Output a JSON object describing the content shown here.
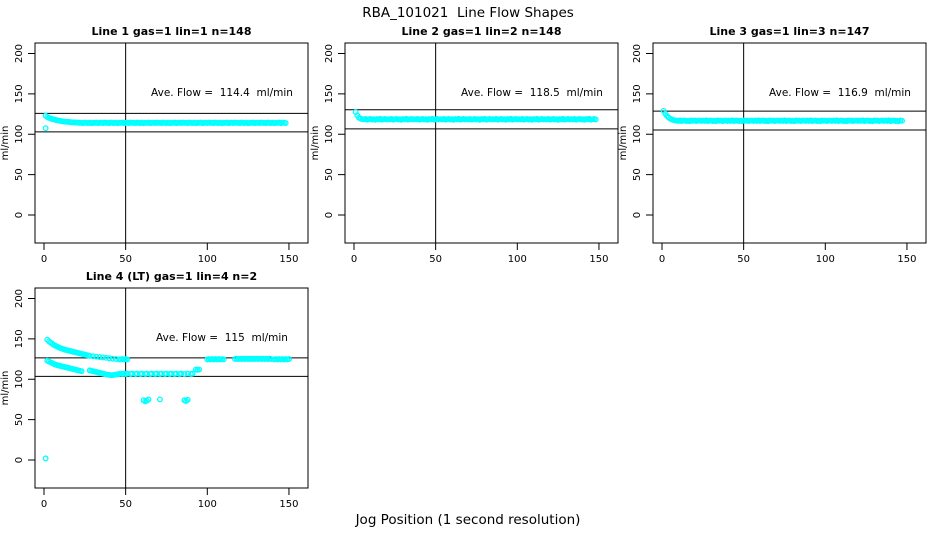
{
  "page": {
    "title": "RBA_101021  Line Flow Shapes",
    "x_axis_label": "Jog Position (1 second resolution)",
    "background": "#ffffff"
  },
  "colors": {
    "points": "#00FFFF",
    "axis": "#000000",
    "text": "#000000"
  },
  "chart_data": [
    {
      "type": "scatter",
      "title": "Line 1 gas=1 lin=1 n=148",
      "annotation": "Ave. Flow =  114.4  ml/min",
      "ave_flow": 114.4,
      "n": 148,
      "ylabel": "ml/min",
      "x_ticks": [
        0,
        50,
        100,
        150
      ],
      "y_ticks": [
        0,
        50,
        100,
        150,
        200
      ],
      "xlim": [
        -5,
        162
      ],
      "ylim": [
        -40,
        213
      ],
      "grid": false,
      "vline_x": 50,
      "ref_lines": [
        125.8,
        103.0
      ],
      "marker": "open-circle",
      "series": {
        "x_start": 1,
        "x_step": 1,
        "y": [
          123.0,
          121.5,
          120.4,
          119.6,
          118.9,
          118.3,
          117.8,
          117.3,
          116.9,
          116.5,
          116.2,
          115.9,
          115.6,
          115.4,
          115.2,
          115.0,
          114.8,
          114.7,
          114.6,
          114.5,
          114.4,
          114.0,
          114.2,
          113.8,
          114.5,
          114.1,
          113.9,
          114.3,
          113.7,
          114.2,
          114.0,
          114.4,
          113.8,
          114.1,
          114.3,
          113.9,
          114.4,
          114.0,
          114.2,
          113.8,
          114.5,
          114.1,
          113.9,
          114.3,
          113.7,
          114.2,
          114.0,
          114.4,
          113.8,
          114.1,
          114.3,
          113.9,
          114.4,
          114.0,
          114.2,
          113.8,
          114.5,
          114.1,
          113.9,
          114.3,
          113.7,
          114.2,
          114.0,
          114.4,
          113.8,
          114.1,
          114.3,
          113.9,
          114.4,
          114.0,
          114.2,
          113.8,
          114.5,
          114.1,
          113.9,
          114.3,
          113.7,
          114.2,
          114.0,
          114.4,
          113.8,
          114.1,
          114.3,
          113.9,
          114.4,
          114.0,
          114.2,
          113.8,
          114.5,
          114.1,
          113.9,
          114.3,
          113.7,
          114.2,
          114.0,
          114.4,
          113.8,
          114.1,
          114.3,
          113.9,
          114.4,
          114.0,
          114.2,
          113.8,
          114.5,
          114.1,
          113.9,
          114.3,
          113.7,
          114.2,
          114.0,
          114.4,
          113.8,
          114.1,
          114.3,
          113.9,
          114.4,
          114.0,
          114.2,
          113.8,
          114.5,
          114.1,
          113.9,
          114.3,
          113.7,
          114.2,
          114.0,
          114.4,
          113.8,
          114.1,
          114.3,
          113.9,
          114.4,
          114.0,
          114.2,
          113.8,
          114.5,
          114.1,
          113.9,
          114.3,
          113.7,
          114.2,
          114.0,
          114.4,
          113.8,
          114.1,
          114.3,
          113.9
        ]
      },
      "extra_points": [
        [
          1,
          107.5
        ]
      ]
    },
    {
      "type": "scatter",
      "title": "Line 2 gas=1 lin=2 n=148",
      "annotation": "Ave. Flow =  118.5  ml/min",
      "ave_flow": 118.5,
      "n": 148,
      "ylabel": "ml/min",
      "x_ticks": [
        0,
        50,
        100,
        150
      ],
      "y_ticks": [
        0,
        50,
        100,
        150,
        200
      ],
      "xlim": [
        -5,
        162
      ],
      "ylim": [
        -40,
        213
      ],
      "grid": false,
      "vline_x": 50,
      "ref_lines": [
        130.4,
        106.7
      ],
      "marker": "open-circle",
      "series": {
        "x_start": 1,
        "x_step": 1,
        "y": [
          127.5,
          123.5,
          120.5,
          119.5,
          118.7,
          118.3,
          118.9,
          118.1,
          118.5,
          119.0,
          118.2,
          118.6,
          117.9,
          118.8,
          118.4,
          119.1,
          118.0,
          118.5,
          118.9,
          118.3,
          118.7,
          118.3,
          118.9,
          118.1,
          118.5,
          119.0,
          118.2,
          118.6,
          117.9,
          118.8,
          118.4,
          119.1,
          118.0,
          118.5,
          118.9,
          118.3,
          118.7,
          118.3,
          118.9,
          118.1,
          118.5,
          119.0,
          118.2,
          118.6,
          117.9,
          118.8,
          118.4,
          119.1,
          118.0,
          118.5,
          118.9,
          118.3,
          118.7,
          118.3,
          118.9,
          118.1,
          118.5,
          119.0,
          118.2,
          118.6,
          117.9,
          118.8,
          118.4,
          119.1,
          118.0,
          118.5,
          118.9,
          118.3,
          118.7,
          118.3,
          118.9,
          118.1,
          118.5,
          119.0,
          118.2,
          118.6,
          117.9,
          118.8,
          118.4,
          119.1,
          118.0,
          118.5,
          118.9,
          118.3,
          118.7,
          118.3,
          118.9,
          118.1,
          118.5,
          119.0,
          118.2,
          118.6,
          117.9,
          118.8,
          118.4,
          119.1,
          118.0,
          118.5,
          118.9,
          118.3,
          118.7,
          118.3,
          118.9,
          118.1,
          118.5,
          119.0,
          118.2,
          118.6,
          117.9,
          118.8,
          118.4,
          119.1,
          118.0,
          118.5,
          118.9,
          118.3,
          118.7,
          118.3,
          118.9,
          118.1,
          118.5,
          119.0,
          118.2,
          118.6,
          117.9,
          118.8,
          118.4,
          119.1,
          118.0,
          118.5,
          118.9,
          118.3,
          118.7,
          118.3,
          118.9,
          118.1,
          118.5,
          119.0,
          118.2,
          118.6,
          117.9,
          118.8,
          118.4,
          119.1,
          118.0,
          118.5,
          118.9,
          118.3
        ]
      },
      "extra_points": []
    },
    {
      "type": "scatter",
      "title": "Line 3 gas=1 lin=3 n=147",
      "annotation": "Ave. Flow =  116.9  ml/min",
      "ave_flow": 116.9,
      "n": 147,
      "ylabel": "ml/min",
      "x_ticks": [
        0,
        50,
        100,
        150
      ],
      "y_ticks": [
        0,
        50,
        100,
        150,
        200
      ],
      "xlim": [
        -5,
        162
      ],
      "ylim": [
        -40,
        213
      ],
      "grid": false,
      "vline_x": 50,
      "ref_lines": [
        128.6,
        105.2
      ],
      "marker": "open-circle",
      "series": {
        "x_start": 1,
        "x_step": 1,
        "y": [
          129.0,
          125.5,
          122.8,
          120.8,
          119.3,
          118.3,
          117.6,
          117.1,
          116.9,
          116.5,
          117.2,
          116.3,
          116.8,
          117.0,
          116.4,
          116.7,
          116.2,
          117.1,
          116.6,
          116.9,
          116.3,
          116.8,
          117.0,
          116.5,
          116.9,
          116.5,
          117.2,
          116.3,
          116.8,
          117.0,
          116.4,
          116.7,
          116.2,
          117.1,
          116.6,
          116.9,
          116.3,
          116.8,
          117.0,
          116.5,
          116.9,
          116.5,
          117.2,
          116.3,
          116.8,
          117.0,
          116.4,
          116.7,
          116.2,
          117.1,
          116.6,
          116.9,
          116.3,
          116.8,
          117.0,
          116.5,
          116.9,
          116.5,
          117.2,
          116.3,
          116.8,
          117.0,
          116.4,
          116.7,
          116.2,
          117.1,
          116.6,
          116.9,
          116.3,
          116.8,
          117.0,
          116.5,
          116.9,
          116.5,
          117.2,
          116.3,
          116.8,
          117.0,
          116.4,
          116.7,
          116.2,
          117.1,
          116.6,
          116.9,
          116.3,
          116.8,
          117.0,
          116.5,
          116.9,
          116.5,
          117.2,
          116.3,
          116.8,
          117.0,
          116.4,
          116.7,
          116.2,
          117.1,
          116.6,
          116.9,
          116.3,
          116.8,
          117.0,
          116.5,
          116.9,
          116.5,
          117.2,
          116.3,
          116.8,
          117.0,
          116.4,
          116.7,
          116.2,
          117.1,
          116.6,
          116.9,
          116.3,
          116.8,
          117.0,
          116.5,
          116.9,
          116.5,
          117.2,
          116.3,
          116.8,
          117.0,
          116.4,
          116.7,
          116.2,
          117.1,
          116.6,
          116.9,
          116.3,
          116.8,
          117.0,
          116.5,
          116.9,
          116.5,
          117.2,
          116.3,
          116.8,
          117.0,
          116.4,
          116.7,
          116.2,
          117.1,
          116.6
        ]
      },
      "extra_points": []
    },
    {
      "type": "scatter",
      "title": "Line 4 (LT) gas=1 lin=4 n=2",
      "annotation": "Ave. Flow =  115  ml/min",
      "ave_flow": 115,
      "n": 2,
      "ylabel": "ml/min",
      "x_ticks": [
        0,
        50,
        100,
        150
      ],
      "y_ticks": [
        0,
        50,
        100,
        150,
        200
      ],
      "xlim": [
        -5,
        162
      ],
      "ylim": [
        -40,
        213
      ],
      "grid": false,
      "vline_x": 50,
      "ref_lines": [
        126.5,
        103.5
      ],
      "marker": "open-circle",
      "points": [
        [
          1,
          2
        ],
        [
          2,
          149
        ],
        [
          3,
          147
        ],
        [
          4,
          145.5
        ],
        [
          5,
          144
        ],
        [
          6,
          142.5
        ],
        [
          7,
          141.5
        ],
        [
          8,
          140.5
        ],
        [
          9,
          139.5
        ],
        [
          10,
          138.5
        ],
        [
          11,
          138
        ],
        [
          12,
          137
        ],
        [
          13,
          136.5
        ],
        [
          14,
          136
        ],
        [
          15,
          135.5
        ],
        [
          16,
          135
        ],
        [
          17,
          134.5
        ],
        [
          18,
          134
        ],
        [
          19,
          133.5
        ],
        [
          20,
          133
        ],
        [
          21,
          132.5
        ],
        [
          22,
          132
        ],
        [
          23,
          131.5
        ],
        [
          24,
          131
        ],
        [
          25,
          130.5
        ],
        [
          26,
          130
        ],
        [
          27,
          129.5
        ],
        [
          28,
          129
        ],
        [
          30,
          128.5
        ],
        [
          32,
          128
        ],
        [
          34,
          127.5
        ],
        [
          36,
          127
        ],
        [
          38,
          126.5
        ],
        [
          40,
          126
        ],
        [
          42,
          125.5
        ],
        [
          44,
          125
        ],
        [
          46,
          124.5
        ],
        [
          2,
          123
        ],
        [
          3,
          122
        ],
        [
          4,
          121
        ],
        [
          5,
          120
        ],
        [
          6,
          119
        ],
        [
          7,
          118
        ],
        [
          8,
          117.5
        ],
        [
          9,
          117
        ],
        [
          10,
          116.5
        ],
        [
          11,
          116
        ],
        [
          12,
          115.5
        ],
        [
          13,
          115
        ],
        [
          14,
          114.5
        ],
        [
          15,
          114
        ],
        [
          16,
          113.5
        ],
        [
          17,
          113
        ],
        [
          18,
          112.5
        ],
        [
          19,
          112
        ],
        [
          20,
          111.5
        ],
        [
          21,
          111
        ],
        [
          22,
          110.5
        ],
        [
          23,
          110
        ],
        [
          28,
          111
        ],
        [
          29,
          110.5
        ],
        [
          30,
          110
        ],
        [
          31,
          109.5
        ],
        [
          32,
          109
        ],
        [
          33,
          108.5
        ],
        [
          34,
          108
        ],
        [
          35,
          107.5
        ],
        [
          36,
          107
        ],
        [
          37,
          106.5
        ],
        [
          38,
          106
        ],
        [
          39,
          105.5
        ],
        [
          40,
          105.5
        ],
        [
          41,
          105
        ],
        [
          42,
          105
        ],
        [
          43,
          105.5
        ],
        [
          44,
          106
        ],
        [
          45,
          106
        ],
        [
          46,
          106.5
        ],
        [
          47,
          107
        ],
        [
          48,
          106.5
        ],
        [
          49,
          107
        ],
        [
          50,
          106.5
        ],
        [
          51,
          107
        ],
        [
          53,
          106.5
        ],
        [
          54,
          107
        ],
        [
          56,
          106.5
        ],
        [
          57,
          107
        ],
        [
          59,
          106.5
        ],
        [
          60,
          107
        ],
        [
          62,
          106.5
        ],
        [
          63,
          107
        ],
        [
          65,
          106.5
        ],
        [
          66,
          107
        ],
        [
          68,
          106.5
        ],
        [
          69,
          107
        ],
        [
          71,
          106.5
        ],
        [
          72,
          107
        ],
        [
          74,
          106.5
        ],
        [
          75,
          107
        ],
        [
          77,
          106.5
        ],
        [
          78,
          107
        ],
        [
          80,
          106.5
        ],
        [
          81,
          107
        ],
        [
          83,
          106.5
        ],
        [
          84,
          107
        ],
        [
          86,
          106.5
        ],
        [
          88,
          107
        ],
        [
          90,
          106.5
        ],
        [
          91,
          107
        ],
        [
          93,
          112
        ],
        [
          94,
          111.5
        ],
        [
          95,
          112
        ],
        [
          61,
          74
        ],
        [
          62,
          72.5
        ],
        [
          63,
          73.5
        ],
        [
          64,
          75
        ],
        [
          71,
          75
        ],
        [
          86,
          74
        ],
        [
          87,
          73
        ],
        [
          88,
          74.5
        ],
        [
          47,
          124.5
        ],
        [
          48,
          125
        ],
        [
          49,
          124.5
        ],
        [
          50,
          125
        ],
        [
          51,
          124.5
        ],
        [
          100,
          124.5
        ],
        [
          101,
          125
        ],
        [
          102,
          124.5
        ],
        [
          103,
          125
        ],
        [
          104,
          124.5
        ],
        [
          105,
          125
        ],
        [
          106,
          124.5
        ],
        [
          107,
          125
        ],
        [
          108,
          124.5
        ],
        [
          109,
          125
        ],
        [
          110,
          124.5
        ],
        [
          117,
          125
        ],
        [
          118,
          125.5
        ],
        [
          119,
          125
        ],
        [
          120,
          125.5
        ],
        [
          121,
          125
        ],
        [
          122,
          125.5
        ],
        [
          123,
          125
        ],
        [
          124,
          125.5
        ],
        [
          125,
          125
        ],
        [
          126,
          125.5
        ],
        [
          127,
          125
        ],
        [
          128,
          125.5
        ],
        [
          129,
          125
        ],
        [
          130,
          125.5
        ],
        [
          131,
          125
        ],
        [
          132,
          125.5
        ],
        [
          133,
          125
        ],
        [
          134,
          125.5
        ],
        [
          135,
          125
        ],
        [
          136,
          125.5
        ],
        [
          137,
          125
        ],
        [
          138,
          125.5
        ],
        [
          139,
          125
        ],
        [
          141,
          124.5
        ],
        [
          142,
          125
        ],
        [
          143,
          124.5
        ],
        [
          144,
          125
        ],
        [
          145,
          124.5
        ],
        [
          146,
          125
        ],
        [
          147,
          124.5
        ],
        [
          148,
          125
        ],
        [
          149,
          124.5
        ],
        [
          150,
          125
        ]
      ],
      "extra_points": []
    }
  ]
}
